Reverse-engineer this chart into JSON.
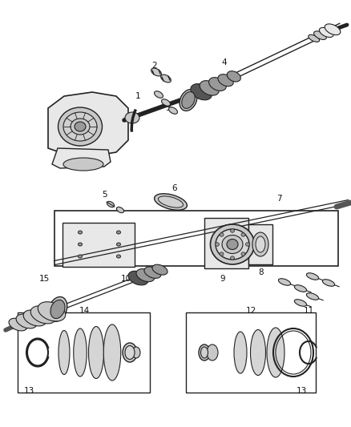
{
  "background_color": "#ffffff",
  "line_color": "#222222",
  "gray_fill": "#c8c8c8",
  "dark_fill": "#555555",
  "mid_fill": "#999999",
  "light_fill": "#e8e8e8",
  "figsize": [
    4.38,
    5.33
  ],
  "dpi": 100
}
